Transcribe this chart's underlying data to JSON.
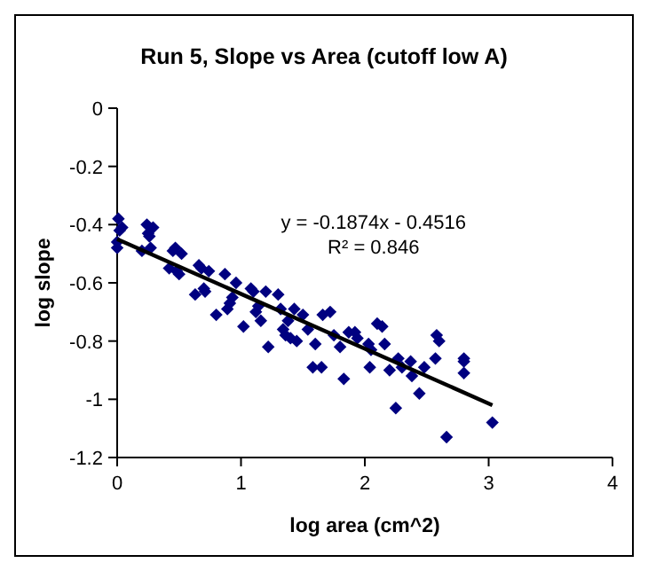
{
  "chart_data": {
    "type": "scatter",
    "title": "Run 5, Slope vs Area (cutoff low A)",
    "xlabel": "log area (cm^2)",
    "ylabel": "log slope",
    "xlim": [
      0,
      4
    ],
    "xticks": [
      0,
      1,
      2,
      3,
      4
    ],
    "ylim": [
      -1.2,
      0
    ],
    "yticks": [
      -1.2,
      -1,
      -0.8,
      -0.6,
      -0.4,
      -0.2,
      0
    ],
    "grid": false,
    "marker": "diamond",
    "annotations": [
      "y = -0.1874x - 0.4516",
      "R² = 0.846"
    ],
    "series": [
      {
        "color": "#000080",
        "x": [
          0.0,
          0.0,
          0.01,
          0.02,
          0.04,
          0.2,
          0.24,
          0.25,
          0.26,
          0.27,
          0.29,
          0.42,
          0.45,
          0.47,
          0.48,
          0.5,
          0.52,
          0.63,
          0.66,
          0.68,
          0.7,
          0.71,
          0.74,
          0.8,
          0.87,
          0.89,
          0.91,
          0.93,
          0.96,
          1.02,
          1.08,
          1.1,
          1.12,
          1.14,
          1.16,
          1.2,
          1.22,
          1.3,
          1.32,
          1.34,
          1.36,
          1.38,
          1.4,
          1.43,
          1.45,
          1.5,
          1.54,
          1.58,
          1.6,
          1.65,
          1.66,
          1.72,
          1.75,
          1.8,
          1.83,
          1.87,
          1.92,
          1.94,
          2.03,
          2.04,
          2.05,
          2.1,
          2.14,
          2.16,
          2.2,
          2.25,
          2.27,
          2.3,
          2.37,
          2.38,
          2.44,
          2.48,
          2.57,
          2.58,
          2.6,
          2.66,
          2.8,
          2.8,
          2.8,
          3.03
        ],
        "values": [
          -0.48,
          -0.46,
          -0.38,
          -0.42,
          -0.41,
          -0.49,
          -0.4,
          -0.43,
          -0.44,
          -0.48,
          -0.41,
          -0.55,
          -0.49,
          -0.48,
          -0.56,
          -0.57,
          -0.5,
          -0.64,
          -0.54,
          -0.55,
          -0.62,
          -0.63,
          -0.56,
          -0.71,
          -0.57,
          -0.69,
          -0.67,
          -0.65,
          -0.6,
          -0.75,
          -0.62,
          -0.63,
          -0.7,
          -0.68,
          -0.73,
          -0.63,
          -0.82,
          -0.64,
          -0.69,
          -0.76,
          -0.78,
          -0.73,
          -0.79,
          -0.69,
          -0.8,
          -0.71,
          -0.76,
          -0.89,
          -0.81,
          -0.89,
          -0.71,
          -0.7,
          -0.78,
          -0.82,
          -0.93,
          -0.77,
          -0.77,
          -0.79,
          -0.81,
          -0.89,
          -0.83,
          -0.74,
          -0.75,
          -0.81,
          -0.9,
          -1.03,
          -0.86,
          -0.89,
          -0.87,
          -0.92,
          -0.98,
          -0.89,
          -0.86,
          -0.78,
          -0.8,
          -1.13,
          -0.86,
          -0.87,
          -0.91,
          -1.08
        ]
      },
      {
        "type": "line",
        "color": "#000000",
        "marker": "none",
        "x": [
          0,
          3.03
        ],
        "values": [
          -0.45,
          -1.02
        ]
      }
    ]
  }
}
